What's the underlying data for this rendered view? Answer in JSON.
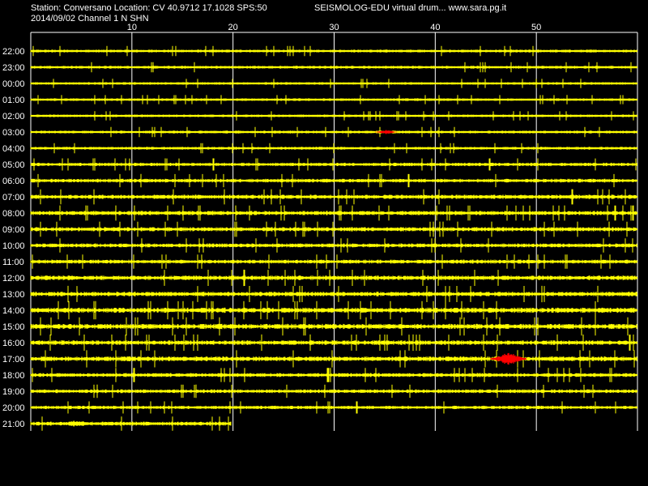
{
  "header": {
    "station_line": "Station: Conversano Location: CV 40.9712 17.1028 SPS:50",
    "date_line": "2014/09/02  Channel 1 N SHN",
    "app_line": "SEISMOLOG-EDU virtual drum... www.sara.pg.it"
  },
  "colors": {
    "background": "#000000",
    "trace": "#ffff00",
    "event": "#ff0000",
    "grid": "#ffffff"
  },
  "chart_data": {
    "type": "line",
    "title": "",
    "xlabel": "",
    "ylabel": "",
    "xlim": [
      0,
      60
    ],
    "x_ticks": [
      10,
      20,
      30,
      40,
      50
    ],
    "grid": true,
    "rows": [
      {
        "label": "22:00",
        "end": 60,
        "noise": 1.0,
        "events": []
      },
      {
        "label": "23:00",
        "end": 60,
        "noise": 1.0,
        "events": []
      },
      {
        "label": "00:00",
        "end": 60,
        "noise": 0.9,
        "events": []
      },
      {
        "label": "01:00",
        "end": 60,
        "noise": 0.9,
        "events": []
      },
      {
        "label": "02:00",
        "end": 60,
        "noise": 0.9,
        "events": []
      },
      {
        "label": "03:00",
        "end": 60,
        "noise": 1.0,
        "events": [
          {
            "start": 34.1,
            "end": 36.2,
            "amp": 2.5,
            "color": "event"
          }
        ]
      },
      {
        "label": "04:00",
        "end": 60,
        "noise": 1.0,
        "events": []
      },
      {
        "label": "05:00",
        "end": 60,
        "noise": 1.2,
        "events": []
      },
      {
        "label": "06:00",
        "end": 60,
        "noise": 1.3,
        "events": []
      },
      {
        "label": "07:00",
        "end": 60,
        "noise": 1.5,
        "events": []
      },
      {
        "label": "08:00",
        "end": 60,
        "noise": 1.5,
        "events": []
      },
      {
        "label": "09:00",
        "end": 60,
        "noise": 1.5,
        "events": []
      },
      {
        "label": "10:00",
        "end": 60,
        "noise": 1.4,
        "events": []
      },
      {
        "label": "11:00",
        "end": 60,
        "noise": 1.4,
        "events": []
      },
      {
        "label": "12:00",
        "end": 60,
        "noise": 1.6,
        "events": []
      },
      {
        "label": "13:00",
        "end": 60,
        "noise": 1.6,
        "events": []
      },
      {
        "label": "14:00",
        "end": 60,
        "noise": 1.8,
        "events": []
      },
      {
        "label": "15:00",
        "end": 60,
        "noise": 1.8,
        "events": []
      },
      {
        "label": "16:00",
        "end": 60,
        "noise": 1.6,
        "events": []
      },
      {
        "label": "17:00",
        "end": 60,
        "noise": 1.7,
        "events": [
          {
            "start": 45.5,
            "end": 49.0,
            "amp": 8,
            "color": "event"
          }
        ]
      },
      {
        "label": "18:00",
        "end": 60,
        "noise": 1.4,
        "events": []
      },
      {
        "label": "19:00",
        "end": 60,
        "noise": 1.3,
        "events": []
      },
      {
        "label": "20:00",
        "end": 60,
        "noise": 1.2,
        "events": []
      },
      {
        "label": "21:00",
        "end": 19.8,
        "noise": 1.4,
        "events": [
          {
            "start": 2.5,
            "end": 6.5,
            "amp": 4,
            "color": "trace"
          }
        ]
      }
    ]
  }
}
